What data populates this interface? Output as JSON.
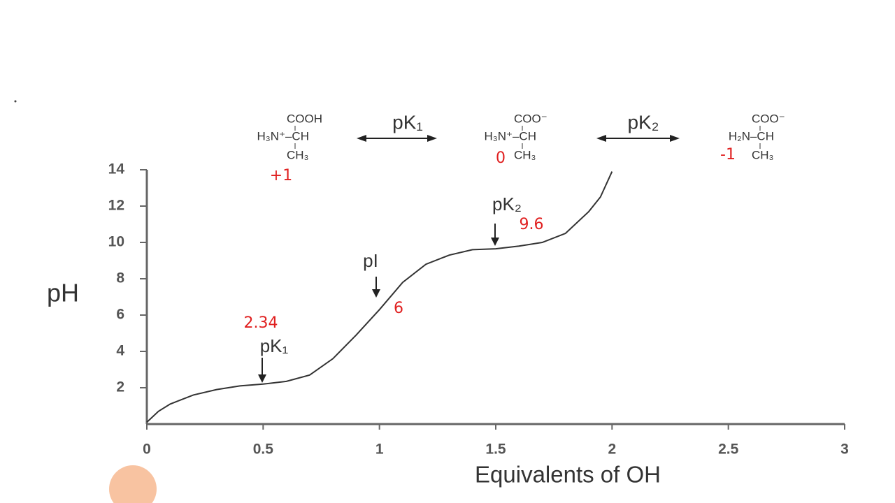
{
  "chart_data": {
    "type": "line",
    "x": [
      0,
      0.05,
      0.1,
      0.2,
      0.3,
      0.4,
      0.5,
      0.6,
      0.7,
      0.8,
      0.9,
      1.0,
      1.1,
      1.2,
      1.3,
      1.4,
      1.5,
      1.6,
      1.7,
      1.8,
      1.9,
      1.95,
      2.0
    ],
    "values": [
      0.1,
      0.7,
      1.1,
      1.6,
      1.9,
      2.1,
      2.2,
      2.35,
      2.7,
      3.6,
      4.9,
      6.3,
      7.8,
      8.8,
      9.3,
      9.6,
      9.65,
      9.8,
      10.0,
      10.5,
      11.7,
      12.5,
      13.9
    ],
    "color": "#333333",
    "xlim": [
      0,
      3
    ],
    "xticks": [
      0,
      0.5,
      1,
      1.5,
      2,
      2.5,
      3
    ],
    "ylim": [
      0,
      14
    ],
    "yticks": [
      2,
      4,
      6,
      8,
      10,
      12,
      14
    ],
    "x_label": "Equivalents of OH",
    "y_label": "pH",
    "annotations": [
      "pK₁",
      "pI",
      "pK₂"
    ],
    "structures": [
      [
        "COOH",
        "H₃N⁺–CH",
        "CH₃"
      ],
      [
        "COO⁻",
        "H₃N⁺–CH",
        "CH₃"
      ],
      [
        "COO⁻",
        "H₂N–CH",
        "CH₃"
      ]
    ],
    "equilibria": [
      "pK₁",
      "pK₂"
    ],
    "handwritten": [
      "+1",
      "0",
      "-1",
      "2.34",
      "6",
      "9.6"
    ]
  }
}
